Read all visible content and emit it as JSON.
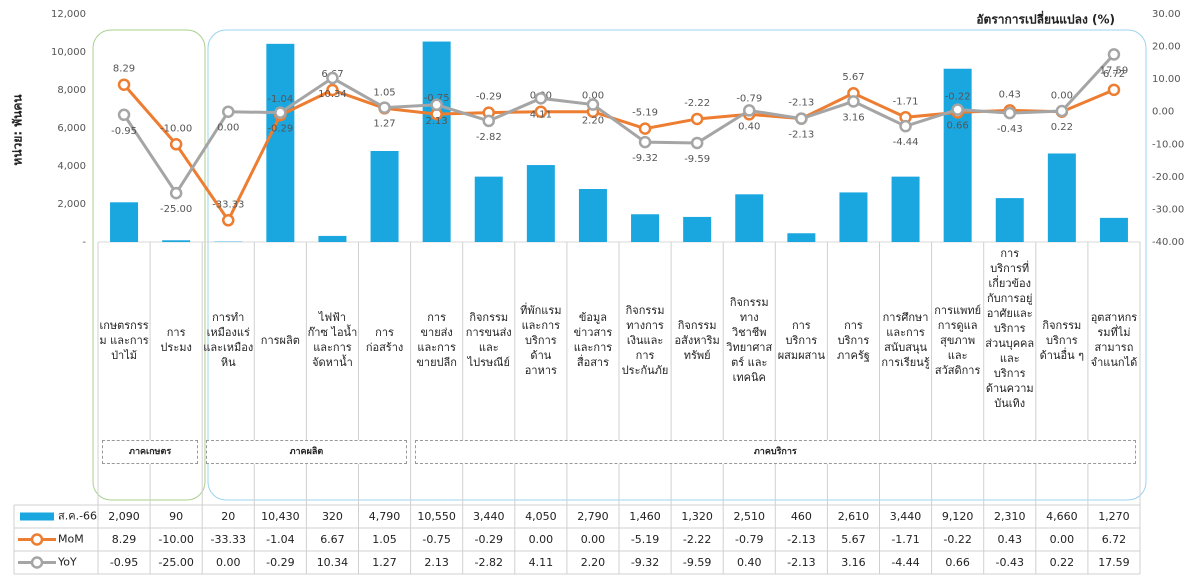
{
  "chart_data": {
    "type": "bar",
    "y_label": "หน่วย: พันคน",
    "y2_label": "อัตราการเปลี่ยนแปลง (%)",
    "categories": [
      "เกษตรกรรม และการป่าไม้",
      "การประมง",
      "การทำเหมืองแร่และเหมืองหิน",
      "การผลิต",
      "ไฟฟ้า ก๊าซ ไอน้ำ และการจัดหาน้ำ",
      "การก่อสร้าง",
      "การขายส่ง และการขายปลีก",
      "กิจกรรมการขนส่ง และไปรษณีย์",
      "ที่พักแรมและการบริการด้านอาหาร",
      "ข้อมูลข่าวสารและการสื่อสาร",
      "กิจกรรมทางการเงินและการประกันภัย",
      "กิจกรรมอสังหาริมทรัพย์",
      "กิจกรรมทางวิชาชีพวิทยาศาสตร์ และเทคนิค",
      "การบริการผสมผสาน",
      "การบริการภาครัฐ",
      "การศึกษาและการสนับสนุนการเรียนรู้",
      "การแพทย์ การดูแลสุขภาพ และสวัสดิการ",
      "การบริการที่เกี่ยวข้องกับการอยู่อาศัยและบริการส่วนบุคคล และบริการด้านความบันเทิง",
      "กิจกรรมบริการด้านอื่น ๆ",
      "อุตสาหกรรมที่ไม่สามารถจำแนกได้"
    ],
    "groups": [
      "ภาคเกษตร",
      "ภาคผลิต",
      "ภาคบริการ"
    ],
    "series": [
      {
        "name": "ส.ค.-66",
        "type": "bar",
        "color": "#1aa7e0",
        "values": [
          2090,
          90,
          20,
          10430,
          320,
          4790,
          10550,
          3440,
          4050,
          2790,
          1460,
          1320,
          2510,
          460,
          2610,
          3440,
          9120,
          2310,
          4660,
          1270
        ],
        "value_labels": [
          "2,090",
          "90",
          "20",
          "10,430",
          "320",
          "4,790",
          "10,550",
          "3,440",
          "4,050",
          "2,790",
          "1,460",
          "1,320",
          "2,510",
          "460",
          "2,610",
          "3,440",
          "9,120",
          "2,310",
          "4,660",
          "1,270"
        ]
      },
      {
        "name": "MoM",
        "type": "line",
        "axis": "y2",
        "color": "#ed7d31",
        "values": [
          8.29,
          -10.0,
          -33.33,
          -1.04,
          6.67,
          1.05,
          -0.75,
          -0.29,
          0.0,
          0.0,
          -5.19,
          -2.22,
          -0.79,
          -2.13,
          5.67,
          -1.71,
          -0.22,
          0.43,
          0.0,
          6.72
        ],
        "value_labels": [
          "8.29",
          "-10.00",
          "-33.33",
          "-1.04",
          "6.67",
          "1.05",
          "-0.75",
          "-0.29",
          "0.00",
          "0.00",
          "-5.19",
          "-2.22",
          "-0.79",
          "-2.13",
          "5.67",
          "-1.71",
          "-0.22",
          "0.43",
          "0.00",
          "6.72"
        ]
      },
      {
        "name": "YoY",
        "type": "line",
        "axis": "y2",
        "color": "#a5a5a5",
        "values": [
          -0.95,
          -25.0,
          0.0,
          -0.29,
          10.34,
          1.27,
          2.13,
          -2.82,
          4.11,
          2.2,
          -9.32,
          -9.59,
          0.4,
          -2.13,
          3.16,
          -4.44,
          0.66,
          -0.43,
          0.22,
          17.59
        ],
        "value_labels": [
          "-0.95",
          "-25.00",
          "0.00",
          "-0.29",
          "10.34",
          "1.27",
          "2.13",
          "-2.82",
          "4.11",
          "2.20",
          "-9.32",
          "-9.59",
          "0.40",
          "-2.13",
          "3.16",
          "-4.44",
          "0.66",
          "-0.43",
          "0.22",
          "17.59"
        ]
      }
    ],
    "ylim": [
      0,
      12000
    ],
    "yticks": [
      {
        "value": 0,
        "label": "-"
      },
      {
        "value": 2000,
        "label": "2,000"
      },
      {
        "value": 4000,
        "label": "4,000"
      },
      {
        "value": 6000,
        "label": "6,000"
      },
      {
        "value": 8000,
        "label": "8,000"
      },
      {
        "value": 10000,
        "label": "10,000"
      },
      {
        "value": 12000,
        "label": "12,000"
      }
    ],
    "y2lim": [
      -40,
      30
    ],
    "y2ticks": [
      {
        "value": -40,
        "label": "-40.00"
      },
      {
        "value": -30,
        "label": "-30.00"
      },
      {
        "value": -20,
        "label": "-20.00"
      },
      {
        "value": -10,
        "label": "-10.00"
      },
      {
        "value": 0,
        "label": "0.00"
      },
      {
        "value": 10,
        "label": "10.00"
      },
      {
        "value": 20,
        "label": "20.00"
      },
      {
        "value": 30,
        "label": "30.00"
      }
    ]
  }
}
